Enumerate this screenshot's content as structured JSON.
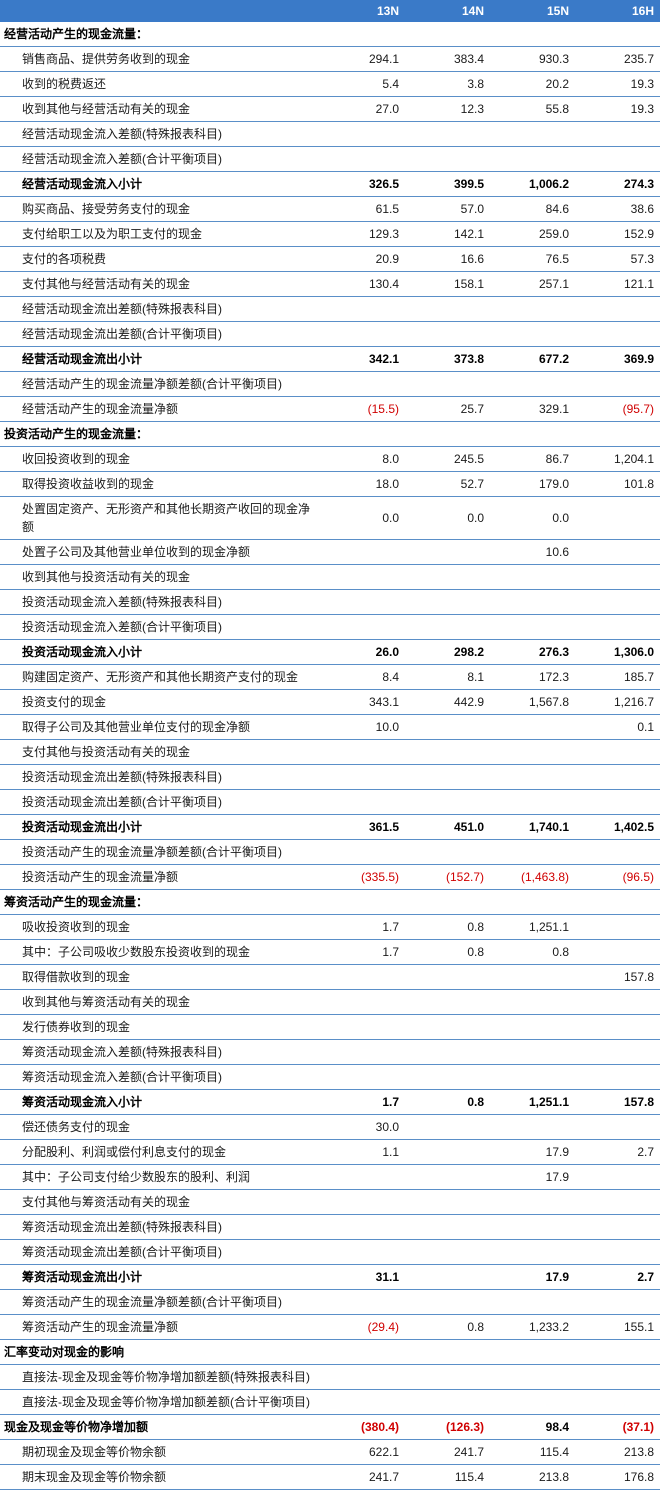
{
  "colors": {
    "header_bg": "#3a7ac8",
    "header_fg": "#ffffff",
    "border": "#5a8fc8",
    "text": "#1a1a1a",
    "negative": "#d00000",
    "bold_text": "#000000"
  },
  "font": {
    "family": "Microsoft YaHei",
    "size_pt": 9
  },
  "columns": {
    "label": "",
    "c1": "13N",
    "c2": "14N",
    "c3": "15N",
    "c4": "16H"
  },
  "col_widths": {
    "label": 320,
    "val": 85
  },
  "rows": [
    {
      "type": "section",
      "label": "经营活动产生的现金流量："
    },
    {
      "type": "item",
      "label": "销售商品、提供劳务收到的现金",
      "v": [
        "294.1",
        "383.4",
        "930.3",
        "235.7"
      ]
    },
    {
      "type": "item",
      "label": "收到的税费返还",
      "v": [
        "5.4",
        "3.8",
        "20.2",
        "19.3"
      ]
    },
    {
      "type": "item",
      "label": "收到其他与经营活动有关的现金",
      "v": [
        "27.0",
        "12.3",
        "55.8",
        "19.3"
      ]
    },
    {
      "type": "item",
      "label": "经营活动现金流入差额(特殊报表科目)",
      "v": [
        "",
        "",
        "",
        ""
      ]
    },
    {
      "type": "item",
      "label": "经营活动现金流入差额(合计平衡项目)",
      "v": [
        "",
        "",
        "",
        ""
      ]
    },
    {
      "type": "subtotal",
      "label": "经营活动现金流入小计",
      "v": [
        "326.5",
        "399.5",
        "1,006.2",
        "274.3"
      ]
    },
    {
      "type": "item",
      "label": "购买商品、接受劳务支付的现金",
      "v": [
        "61.5",
        "57.0",
        "84.6",
        "38.6"
      ]
    },
    {
      "type": "item",
      "label": "支付给职工以及为职工支付的现金",
      "v": [
        "129.3",
        "142.1",
        "259.0",
        "152.9"
      ]
    },
    {
      "type": "item",
      "label": "支付的各项税费",
      "v": [
        "20.9",
        "16.6",
        "76.5",
        "57.3"
      ]
    },
    {
      "type": "item",
      "label": "支付其他与经营活动有关的现金",
      "v": [
        "130.4",
        "158.1",
        "257.1",
        "121.1"
      ]
    },
    {
      "type": "item",
      "label": "经营活动现金流出差额(特殊报表科目)",
      "v": [
        "",
        "",
        "",
        ""
      ]
    },
    {
      "type": "item",
      "label": "经营活动现金流出差额(合计平衡项目)",
      "v": [
        "",
        "",
        "",
        ""
      ]
    },
    {
      "type": "subtotal",
      "label": "经营活动现金流出小计",
      "v": [
        "342.1",
        "373.8",
        "677.2",
        "369.9"
      ]
    },
    {
      "type": "item",
      "label": "经营活动产生的现金流量净额差额(合计平衡项目)",
      "v": [
        "",
        "",
        "",
        ""
      ]
    },
    {
      "type": "item",
      "label": "经营活动产生的现金流量净额",
      "v": [
        "(15.5)",
        "25.7",
        "329.1",
        "(95.7)"
      ],
      "neg": [
        true,
        false,
        false,
        true
      ]
    },
    {
      "type": "section",
      "label": "投资活动产生的现金流量："
    },
    {
      "type": "item",
      "label": "收回投资收到的现金",
      "v": [
        "8.0",
        "245.5",
        "86.7",
        "1,204.1"
      ]
    },
    {
      "type": "item",
      "label": "取得投资收益收到的现金",
      "v": [
        "18.0",
        "52.7",
        "179.0",
        "101.8"
      ]
    },
    {
      "type": "item",
      "label": "处置固定资产、无形资产和其他长期资产收回的现金净额",
      "v": [
        "0.0",
        "0.0",
        "0.0",
        ""
      ]
    },
    {
      "type": "item",
      "label": "处置子公司及其他营业单位收到的现金净额",
      "v": [
        "",
        "",
        "10.6",
        ""
      ]
    },
    {
      "type": "item",
      "label": "收到其他与投资活动有关的现金",
      "v": [
        "",
        "",
        "",
        ""
      ]
    },
    {
      "type": "item",
      "label": "投资活动现金流入差额(特殊报表科目)",
      "v": [
        "",
        "",
        "",
        ""
      ]
    },
    {
      "type": "item",
      "label": "投资活动现金流入差额(合计平衡项目)",
      "v": [
        "",
        "",
        "",
        ""
      ]
    },
    {
      "type": "subtotal",
      "label": "投资活动现金流入小计",
      "v": [
        "26.0",
        "298.2",
        "276.3",
        "1,306.0"
      ]
    },
    {
      "type": "item",
      "label": "购建固定资产、无形资产和其他长期资产支付的现金",
      "v": [
        "8.4",
        "8.1",
        "172.3",
        "185.7"
      ]
    },
    {
      "type": "item",
      "label": "投资支付的现金",
      "v": [
        "343.1",
        "442.9",
        "1,567.8",
        "1,216.7"
      ]
    },
    {
      "type": "item",
      "label": "取得子公司及其他营业单位支付的现金净额",
      "v": [
        "10.0",
        "",
        "",
        "0.1"
      ]
    },
    {
      "type": "item",
      "label": "支付其他与投资活动有关的现金",
      "v": [
        "",
        "",
        "",
        ""
      ]
    },
    {
      "type": "item",
      "label": "投资活动现金流出差额(特殊报表科目)",
      "v": [
        "",
        "",
        "",
        ""
      ]
    },
    {
      "type": "item",
      "label": "投资活动现金流出差额(合计平衡项目)",
      "v": [
        "",
        "",
        "",
        ""
      ]
    },
    {
      "type": "subtotal",
      "label": "投资活动现金流出小计",
      "v": [
        "361.5",
        "451.0",
        "1,740.1",
        "1,402.5"
      ]
    },
    {
      "type": "item",
      "label": "投资活动产生的现金流量净额差额(合计平衡项目)",
      "v": [
        "",
        "",
        "",
        ""
      ]
    },
    {
      "type": "item",
      "label": "投资活动产生的现金流量净额",
      "v": [
        "(335.5)",
        "(152.7)",
        "(1,463.8)",
        "(96.5)"
      ],
      "neg": [
        true,
        true,
        true,
        true
      ]
    },
    {
      "type": "section",
      "label": "筹资活动产生的现金流量："
    },
    {
      "type": "item",
      "label": "吸收投资收到的现金",
      "v": [
        "1.7",
        "0.8",
        "1,251.1",
        ""
      ]
    },
    {
      "type": "item",
      "label": "其中：子公司吸收少数股东投资收到的现金",
      "v": [
        "1.7",
        "0.8",
        "0.8",
        ""
      ]
    },
    {
      "type": "item",
      "label": "取得借款收到的现金",
      "v": [
        "",
        "",
        "",
        "157.8"
      ]
    },
    {
      "type": "item",
      "label": "收到其他与筹资活动有关的现金",
      "v": [
        "",
        "",
        "",
        ""
      ]
    },
    {
      "type": "item",
      "label": "发行债券收到的现金",
      "v": [
        "",
        "",
        "",
        ""
      ]
    },
    {
      "type": "item",
      "label": "筹资活动现金流入差额(特殊报表科目)",
      "v": [
        "",
        "",
        "",
        ""
      ]
    },
    {
      "type": "item",
      "label": "筹资活动现金流入差额(合计平衡项目)",
      "v": [
        "",
        "",
        "",
        ""
      ]
    },
    {
      "type": "subtotal",
      "label": "筹资活动现金流入小计",
      "v": [
        "1.7",
        "0.8",
        "1,251.1",
        "157.8"
      ]
    },
    {
      "type": "item",
      "label": "偿还债务支付的现金",
      "v": [
        "30.0",
        "",
        "",
        ""
      ]
    },
    {
      "type": "item",
      "label": "分配股利、利润或偿付利息支付的现金",
      "v": [
        "1.1",
        "",
        "17.9",
        "2.7"
      ]
    },
    {
      "type": "item",
      "label": "其中：子公司支付给少数股东的股利、利润",
      "v": [
        "",
        "",
        "17.9",
        ""
      ]
    },
    {
      "type": "item",
      "label": "支付其他与筹资活动有关的现金",
      "v": [
        "",
        "",
        "",
        ""
      ]
    },
    {
      "type": "item",
      "label": "筹资活动现金流出差额(特殊报表科目)",
      "v": [
        "",
        "",
        "",
        ""
      ]
    },
    {
      "type": "item",
      "label": "筹资活动现金流出差额(合计平衡项目)",
      "v": [
        "",
        "",
        "",
        ""
      ]
    },
    {
      "type": "subtotal",
      "label": "筹资活动现金流出小计",
      "v": [
        "31.1",
        "",
        "17.9",
        "2.7"
      ]
    },
    {
      "type": "item",
      "label": "筹资活动产生的现金流量净额差额(合计平衡项目)",
      "v": [
        "",
        "",
        "",
        ""
      ]
    },
    {
      "type": "item",
      "label": "筹资活动产生的现金流量净额",
      "v": [
        "(29.4)",
        "0.8",
        "1,233.2",
        "155.1"
      ],
      "neg": [
        true,
        false,
        false,
        false
      ]
    },
    {
      "type": "section",
      "label": "汇率变动对现金的影响"
    },
    {
      "type": "item",
      "label": "直接法-现金及现金等价物净增加额差额(特殊报表科目)",
      "v": [
        "",
        "",
        "",
        ""
      ]
    },
    {
      "type": "item",
      "label": "直接法-现金及现金等价物净增加额差额(合计平衡项目)",
      "v": [
        "",
        "",
        "",
        ""
      ]
    },
    {
      "type": "total",
      "label": "现金及现金等价物净增加额",
      "v": [
        "(380.4)",
        "(126.3)",
        "98.4",
        "(37.1)"
      ],
      "neg": [
        true,
        true,
        false,
        true
      ]
    },
    {
      "type": "item",
      "label": "期初现金及现金等价物余额",
      "v": [
        "622.1",
        "241.7",
        "115.4",
        "213.8"
      ]
    },
    {
      "type": "item",
      "label": "期末现金及现金等价物余额",
      "v": [
        "241.7",
        "115.4",
        "213.8",
        "176.8"
      ]
    }
  ]
}
